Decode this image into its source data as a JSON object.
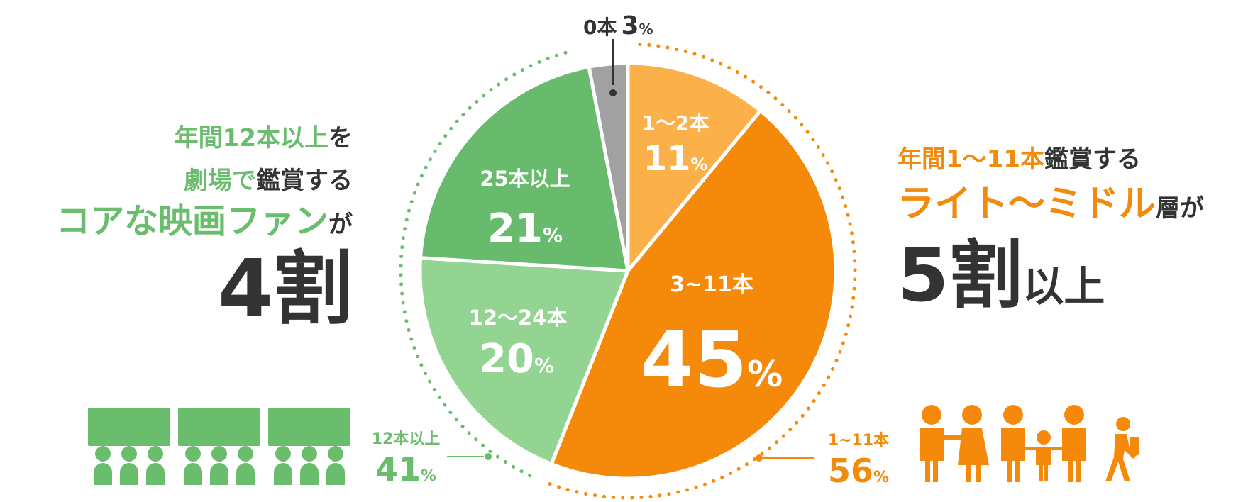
{
  "chart_data": {
    "type": "pie",
    "slices": [
      {
        "label": "1〜2本",
        "value": 11,
        "color": "#fbb04a"
      },
      {
        "label": "3~11本",
        "value": 45,
        "color": "#f58a0a"
      },
      {
        "label": "12〜24本",
        "value": 20,
        "color": "#93d493"
      },
      {
        "label": "25本以上",
        "value": 21,
        "color": "#68bb6c"
      },
      {
        "label": "0本",
        "value": 3,
        "color": "#a1a1a1"
      }
    ],
    "groups": [
      {
        "label": "12本以上",
        "value": 41,
        "color": "#6bbd6e"
      },
      {
        "label": "1~11本",
        "value": 56,
        "color": "#f28a0c"
      }
    ],
    "percent_sign": "%"
  },
  "left_text": {
    "line1_green": "年間12本以上",
    "line1_dark": "を",
    "line2_green": "劇場で",
    "line2_dark": "鑑賞する",
    "line3_green": "コアな映画ファン",
    "line3_dark": "が",
    "line4": "4割"
  },
  "right_text": {
    "line1_orange": "年間1〜11本",
    "line1_dark": "鑑賞する",
    "line2_orange": "ライト〜ミドル",
    "line2_dark": "層が",
    "line3_big": "5割",
    "line3_small": "以上"
  },
  "icons": {
    "left": "theater-audience-icon",
    "right": "family-icon"
  }
}
